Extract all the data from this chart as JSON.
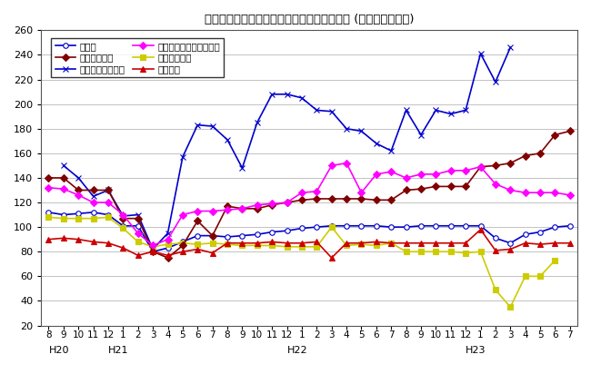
{
  "title": "三重県鉱工業生産及び主要業種別指数の推移 (季節調整済指数)",
  "xlabel_periods": [
    "8",
    "9",
    "10",
    "11",
    "12",
    "1",
    "2",
    "3",
    "4",
    "5",
    "6",
    "7",
    "8",
    "9",
    "10",
    "11",
    "12",
    "1",
    "2",
    "3",
    "4",
    "5",
    "6",
    "7",
    "8",
    "9",
    "10",
    "11",
    "12",
    "1",
    "2",
    "3",
    "4",
    "5",
    "6",
    "7"
  ],
  "era_labels": [
    {
      "label": "H20",
      "tick_index": 0
    },
    {
      "label": "H21",
      "tick_index": 4
    },
    {
      "label": "H22",
      "tick_index": 16
    },
    {
      "label": "H23",
      "tick_index": 28
    }
  ],
  "ylim": [
    20,
    260
  ],
  "yticks": [
    20,
    40,
    60,
    80,
    100,
    120,
    140,
    160,
    180,
    200,
    220,
    240,
    260
  ],
  "series": [
    {
      "name": "鉱工業",
      "color": "#0000CC",
      "marker": "o",
      "markerfacecolor": "white",
      "markersize": 4,
      "values": [
        112,
        110,
        111,
        112,
        110,
        101,
        101,
        80,
        83,
        88,
        93,
        93,
        92,
        93,
        94,
        96,
        97,
        99,
        100,
        101,
        101,
        101,
        101,
        100,
        100,
        101,
        101,
        101,
        101,
        101,
        91,
        87,
        94,
        96,
        100,
        101
      ]
    },
    {
      "name": "情報通信機械工業",
      "color": "#0000CC",
      "marker": "x",
      "markerfacecolor": "#0000CC",
      "markersize": 5,
      "values": [
        null,
        150,
        140,
        125,
        130,
        109,
        110,
        82,
        95,
        157,
        183,
        182,
        171,
        148,
        185,
        208,
        208,
        205,
        195,
        194,
        180,
        178,
        168,
        162,
        195,
        175,
        195,
        192,
        195,
        241,
        218,
        246,
        null,
        null,
        null,
        null
      ]
    },
    {
      "name": "輸送機械工業",
      "color": "#CCCC00",
      "marker": "s",
      "markerfacecolor": "#CCCC00",
      "markersize": 4,
      "values": [
        108,
        107,
        107,
        107,
        108,
        99,
        88,
        84,
        86,
        87,
        86,
        87,
        86,
        85,
        85,
        85,
        84,
        84,
        84,
        100,
        85,
        86,
        85,
        87,
        80,
        80,
        80,
        80,
        79,
        80,
        49,
        35,
        60,
        60,
        73,
        null
      ]
    },
    {
      "name": "一般機械工業",
      "color": "#800000",
      "marker": "D",
      "markerfacecolor": "#800000",
      "markersize": 4,
      "values": [
        140,
        140,
        130,
        130,
        130,
        107,
        107,
        80,
        75,
        85,
        105,
        93,
        117,
        115,
        115,
        118,
        120,
        122,
        123,
        123,
        123,
        123,
        122,
        122,
        130,
        131,
        133,
        133,
        133,
        149,
        150,
        152,
        158,
        160,
        175,
        178
      ]
    },
    {
      "name": "電子部品・デバイス工業",
      "color": "#FF00FF",
      "marker": "D",
      "markerfacecolor": "#FF00FF",
      "markersize": 4,
      "values": [
        132,
        131,
        126,
        120,
        120,
        110,
        95,
        85,
        90,
        110,
        113,
        113,
        114,
        115,
        118,
        119,
        120,
        128,
        129,
        150,
        152,
        128,
        143,
        145,
        140,
        143,
        143,
        146,
        146,
        149,
        135,
        130,
        128,
        128,
        128,
        126
      ]
    },
    {
      "name": "化学工業",
      "color": "#CC0000",
      "marker": "^",
      "markerfacecolor": "#CC0000",
      "markersize": 4,
      "values": [
        90,
        91,
        90,
        88,
        87,
        83,
        77,
        80,
        77,
        80,
        82,
        79,
        87,
        87,
        87,
        88,
        87,
        87,
        88,
        75,
        87,
        87,
        88,
        87,
        87,
        87,
        87,
        87,
        87,
        98,
        81,
        82,
        87,
        86,
        87,
        87
      ]
    }
  ],
  "legend_order": [
    [
      "鉱工業",
      "一般機械工業"
    ],
    [
      "情報通信機械工業",
      "電子部品・デバイス工業"
    ],
    [
      "輸送機械工業",
      "化学工業"
    ]
  ],
  "background_color": "#FFFFFF",
  "grid_color": "#AAAAAA"
}
